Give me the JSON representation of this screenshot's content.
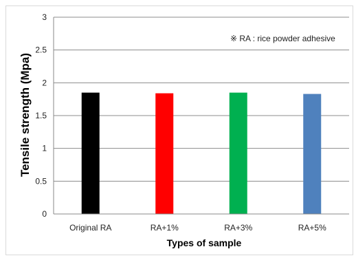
{
  "chart_data": {
    "type": "bar",
    "categories": [
      "Original RA",
      "RA+1%",
      "RA+3%",
      "RA+5%"
    ],
    "values": [
      1.85,
      1.84,
      1.85,
      1.83
    ],
    "colors": [
      "#000000",
      "#ff0000",
      "#00b050",
      "#4f81bd"
    ],
    "xlabel": "Types of sample",
    "ylabel": "Tensile strength (Mpa)",
    "ylim": [
      0,
      3
    ],
    "yticks": [
      "0",
      "0.5",
      "1",
      "1.5",
      "2",
      "2.5",
      "3"
    ],
    "grid": true,
    "legend": "none",
    "annotation": "※ RA : rice powder adhesive"
  }
}
